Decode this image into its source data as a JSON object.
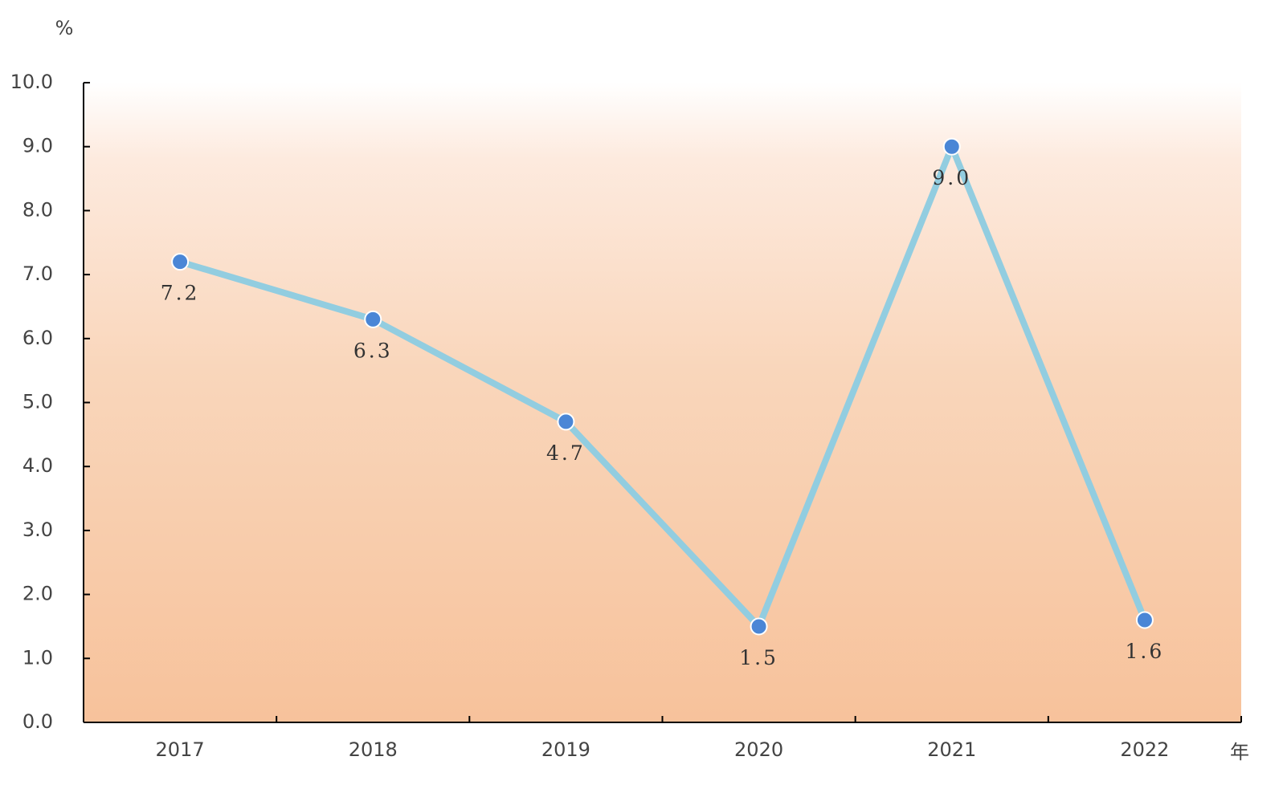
{
  "chart_data": {
    "type": "line",
    "y_label": "%",
    "x_label": "年",
    "categories": [
      "2017",
      "2018",
      "2019",
      "2020",
      "2021",
      "2022"
    ],
    "series": [
      {
        "values": [
          7.2,
          6.3,
          4.7,
          1.5,
          9.0,
          1.6
        ],
        "value_labels": [
          "7.2",
          "6.3",
          "4.7",
          "1.5",
          "9.0",
          "1.6"
        ],
        "color": "#92cde0",
        "marker_color": "#4a86d6"
      }
    ],
    "ylim": [
      0,
      10
    ],
    "yticks": [
      {
        "value": 0,
        "label": "0.0"
      },
      {
        "value": 1,
        "label": "1.0"
      },
      {
        "value": 2,
        "label": "2.0"
      },
      {
        "value": 3,
        "label": "3.0"
      },
      {
        "value": 4,
        "label": "4.0"
      },
      {
        "value": 5,
        "label": "5.0"
      },
      {
        "value": 6,
        "label": "6.0"
      },
      {
        "value": 7,
        "label": "7.0"
      },
      {
        "value": 8,
        "label": "8.0"
      },
      {
        "value": 9,
        "label": "9.0"
      },
      {
        "value": 10,
        "label": "10.0"
      }
    ]
  }
}
